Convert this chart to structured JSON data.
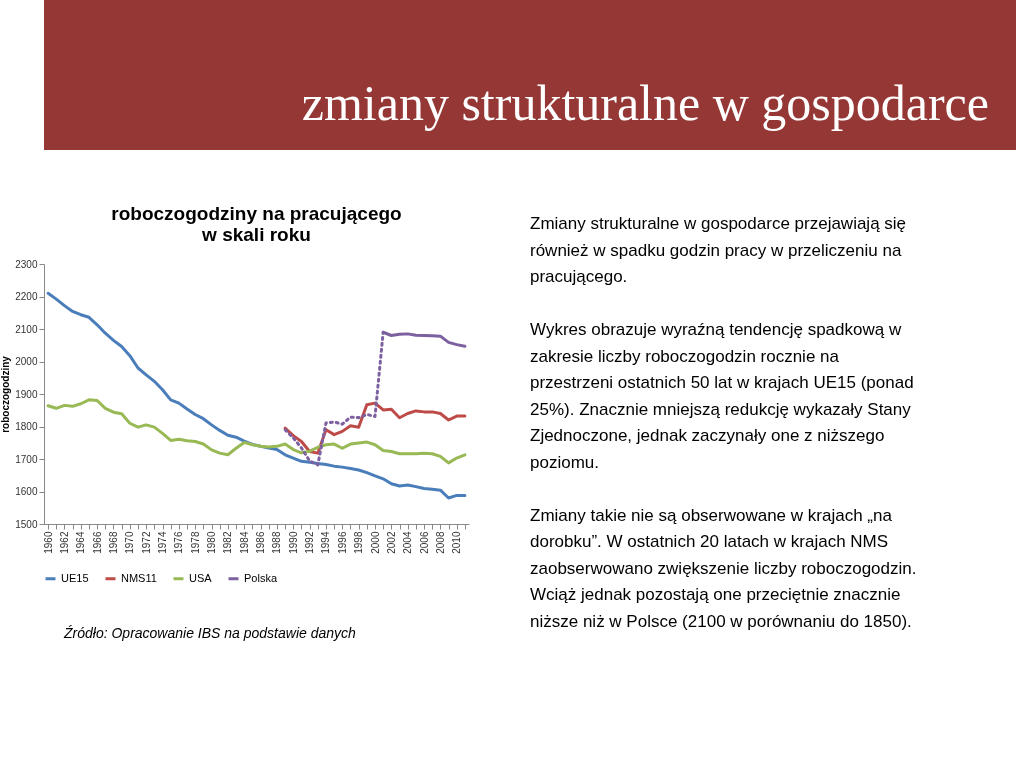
{
  "chart_data": {
    "type": "line",
    "title": "zmiany strukturalne w gospodarce",
    "subtitle": "roboczogodziny na pracującego w skali roku",
    "ylabel": "roboczogodziny",
    "annotations": [
      "Zmiany strukturalne w gospodarce przejawiają się również w spadku godzin pracy w przeliczeniu na pracującego.",
      "Wykres obrazuje wyraźną tendencję spadkową w zakresie liczby roboczogodzin rocznie na przestrzeni ostatnich 50 lat w krajach UE15 (ponad 25%). Znacznie mniejszą redukcję wykazały Stany Zjednoczone, jednak zaczynały one z niższego poziomu.",
      "Zmiany takie nie są obserwowane w krajach „na dorobku”. W ostatnich 20 latach w krajach NMS zaobserwowano zwiększenie liczby roboczogodzin. Wciąż jednak pozostają one przeciętnie znacznie niższe niż w Polsce (2100 w porównaniu do 1850).",
      "Źródło: Opracowanie IBS na podstawie danych"
    ],
    "xlim": [
      1959.5,
      2011.5
    ],
    "ylim": [
      1500,
      2300
    ],
    "yticks": [
      1500,
      1600,
      1700,
      1800,
      1900,
      2000,
      2100,
      2200,
      2300
    ],
    "xticks": [
      1960,
      {
        "value": 1961,
        "label": null
      },
      1962,
      {
        "value": 1963,
        "label": null
      },
      1964,
      {
        "value": 1965,
        "label": null
      },
      1966,
      {
        "value": 1967,
        "label": null
      },
      1968,
      {
        "value": 1969,
        "label": null
      },
      1970,
      {
        "value": 1971,
        "label": null
      },
      1972,
      {
        "value": 1973,
        "label": null
      },
      1974,
      {
        "value": 1975,
        "label": null
      },
      1976,
      {
        "value": 1977,
        "label": null
      },
      1978,
      {
        "value": 1979,
        "label": null
      },
      1980,
      {
        "value": 1981,
        "label": null
      },
      1982,
      {
        "value": 1983,
        "label": null
      },
      1984,
      {
        "value": 1985,
        "label": null
      },
      1986,
      {
        "value": 1987,
        "label": null
      },
      1988,
      {
        "value": 1989,
        "label": null
      },
      1990,
      {
        "value": 1991,
        "label": null
      },
      1992,
      {
        "value": 1993,
        "label": null
      },
      1994,
      {
        "value": 1995,
        "label": null
      },
      1996,
      {
        "value": 1997,
        "label": null
      },
      1998,
      {
        "value": 1999,
        "label": null
      },
      2000,
      {
        "value": 2001,
        "label": null
      },
      2002,
      {
        "value": 2003,
        "label": null
      },
      2004,
      {
        "value": 2005,
        "label": null
      },
      2006,
      {
        "value": 2007,
        "label": null
      },
      2008,
      {
        "value": 2009,
        "label": null
      },
      2010,
      {
        "value": 2011,
        "label": null
      }
    ],
    "grid": false,
    "legend": "bottom",
    "line_style": "solid",
    "series": [
      {
        "name": "UE15",
        "color": "#4a7ebb",
        "x": [
          1960,
          1961,
          1962,
          1963,
          1964,
          1965,
          1966,
          1967,
          1968,
          1969,
          1970,
          1971,
          1972,
          1973,
          1974,
          1975,
          1976,
          1977,
          1978,
          1979,
          1980,
          1981,
          1982,
          1983,
          1984,
          1985,
          1986,
          1987,
          1988,
          1989,
          1990,
          1991,
          1992,
          1993,
          1994,
          1995,
          1996,
          1997,
          1998,
          1999,
          2000,
          2001,
          2002,
          2003,
          2004,
          2005,
          2006,
          2007,
          2008,
          2009,
          2010,
          2011
        ],
        "values": [
          2210,
          2192,
          2172,
          2154,
          2144,
          2136,
          2113,
          2087,
          2065,
          2046,
          2018,
          1980,
          1959,
          1939,
          1913,
          1882,
          1872,
          1854,
          1837,
          1824,
          1805,
          1788,
          1773,
          1767,
          1755,
          1745,
          1739,
          1734,
          1729,
          1713,
          1703,
          1693,
          1690,
          1686,
          1683,
          1678,
          1675,
          1671,
          1666,
          1658,
          1648,
          1639,
          1624,
          1617,
          1620,
          1615,
          1609,
          1607,
          1604,
          1580,
          1588,
          1588
        ]
      },
      {
        "name": "NMS11",
        "color": "#be4b48",
        "x": [
          1989,
          1990,
          1991,
          1992,
          1993,
          1994,
          1995,
          1996,
          1997,
          1998,
          1999,
          2000,
          2001,
          2002,
          2003,
          2004,
          2005,
          2006,
          2007,
          2008,
          2009,
          2010,
          2011
        ],
        "values": [
          1795,
          1772,
          1754,
          1723,
          1718,
          1790,
          1775,
          1785,
          1802,
          1798,
          1867,
          1872,
          1851,
          1853,
          1827,
          1840,
          1848,
          1845,
          1845,
          1840,
          1820,
          1832,
          1832
        ]
      },
      {
        "name": "USA",
        "color": "#98b954",
        "x": [
          1960,
          1961,
          1962,
          1963,
          1964,
          1965,
          1966,
          1967,
          1968,
          1969,
          1970,
          1971,
          1972,
          1973,
          1974,
          1975,
          1976,
          1977,
          1978,
          1979,
          1980,
          1981,
          1982,
          1983,
          1984,
          1985,
          1986,
          1987,
          1988,
          1989,
          1990,
          1991,
          1992,
          1993,
          1994,
          1995,
          1996,
          1997,
          1998,
          1999,
          2000,
          2001,
          2002,
          2003,
          2004,
          2005,
          2006,
          2007,
          2008,
          2009,
          2010,
          2011
        ],
        "values": [
          1864,
          1856,
          1865,
          1862,
          1870,
          1882,
          1880,
          1856,
          1844,
          1839,
          1810,
          1798,
          1805,
          1798,
          1779,
          1757,
          1761,
          1756,
          1754,
          1746,
          1728,
          1718,
          1713,
          1733,
          1751,
          1744,
          1739,
          1737,
          1739,
          1746,
          1729,
          1719,
          1724,
          1736,
          1744,
          1746,
          1733,
          1746,
          1749,
          1752,
          1744,
          1726,
          1723,
          1716,
          1716,
          1716,
          1718,
          1716,
          1708,
          1688,
          1703,
          1713
        ]
      },
      {
        "name": "Polska",
        "color": "#7d60a0",
        "x": [
          2001,
          2002,
          2003,
          2004,
          2005,
          2006,
          2007,
          2008,
          2009,
          2010,
          2011
        ],
        "values": [
          2090,
          2080,
          2084,
          2085,
          2081,
          2080,
          2079,
          2078,
          2059,
          2052,
          2047
        ]
      },
      {
        "color": "#7d60a0",
        "line_style": "dotted",
        "x": [
          1989,
          1990,
          1991,
          1992,
          1993,
          1994,
          1995,
          1996,
          1997,
          1998,
          1999,
          2000,
          2001
        ],
        "values": [
          1790,
          1765,
          1734,
          1694,
          1682,
          1811,
          1814,
          1807,
          1829,
          1827,
          1837,
          1831,
          2090
        ]
      }
    ]
  }
}
